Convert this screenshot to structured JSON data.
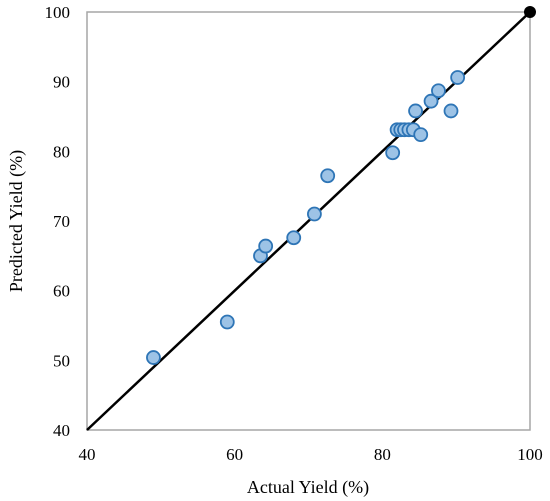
{
  "chart_data": {
    "type": "scatter",
    "title": "",
    "xlabel": "Actual Yield (%)",
    "ylabel": "Predicted Yield (%)",
    "xlim": [
      40,
      100
    ],
    "ylim": [
      40,
      100
    ],
    "x_ticks": [
      "40",
      "60",
      "80",
      "100"
    ],
    "y_ticks": [
      "40",
      "50",
      "60",
      "70",
      "80",
      "90",
      "100"
    ],
    "grid": false,
    "legend": "none",
    "series": [
      {
        "marker_fill": "#9dc3e6",
        "marker_edge": "#2e75b6",
        "points": [
          {
            "x": 49.0,
            "y": 50.4
          },
          {
            "x": 59.0,
            "y": 55.5
          },
          {
            "x": 63.5,
            "y": 65.0
          },
          {
            "x": 64.2,
            "y": 66.4
          },
          {
            "x": 68.0,
            "y": 67.6
          },
          {
            "x": 70.8,
            "y": 71.0
          },
          {
            "x": 72.6,
            "y": 76.5
          },
          {
            "x": 81.4,
            "y": 79.8
          },
          {
            "x": 82.0,
            "y": 83.1
          },
          {
            "x": 82.5,
            "y": 83.1
          },
          {
            "x": 83.0,
            "y": 83.1
          },
          {
            "x": 83.6,
            "y": 83.1
          },
          {
            "x": 84.2,
            "y": 83.1
          },
          {
            "x": 84.5,
            "y": 85.8
          },
          {
            "x": 85.2,
            "y": 82.4
          },
          {
            "x": 86.6,
            "y": 87.2
          },
          {
            "x": 87.6,
            "y": 88.7
          },
          {
            "x": 89.3,
            "y": 85.8
          },
          {
            "x": 90.2,
            "y": 90.6
          }
        ]
      }
    ],
    "reference_line": {
      "type": "y=x",
      "from": [
        40,
        40
      ],
      "to": [
        100,
        100
      ],
      "color": "#000000",
      "endpoint_marker": {
        "x": 100,
        "y": 100,
        "color": "#000000"
      }
    }
  }
}
